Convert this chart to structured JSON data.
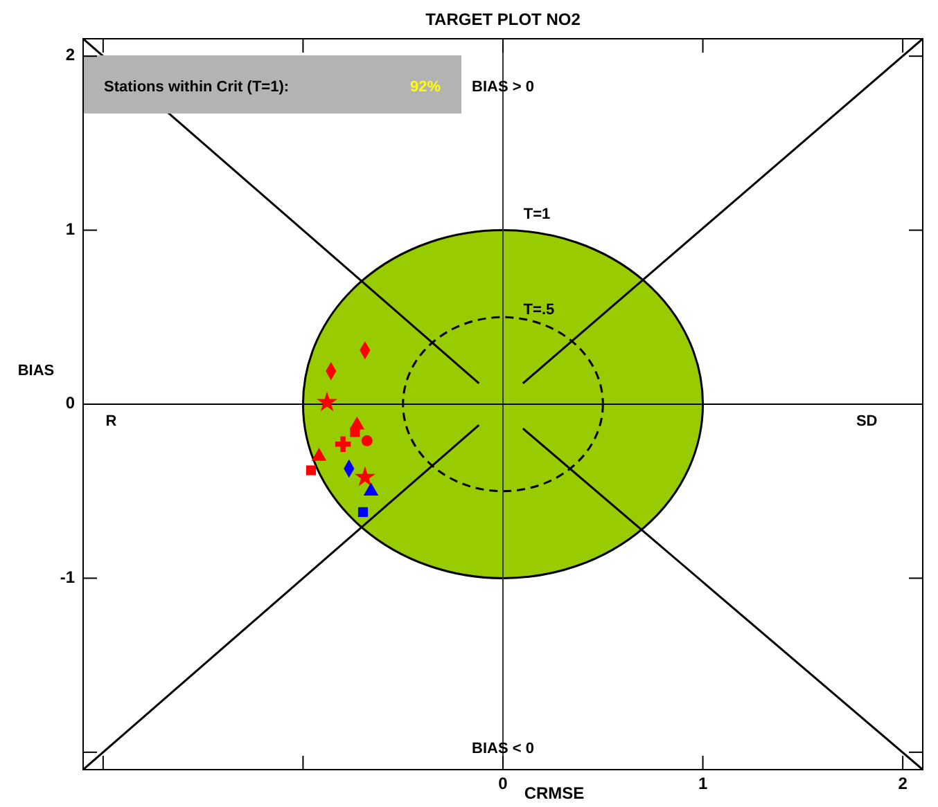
{
  "chart_data": {
    "type": "scatter",
    "title": "TARGET PLOT   NO2",
    "xlabel": "CRMSE",
    "ylabel": "BIAS",
    "xlim": [
      -2.1,
      2.1
    ],
    "ylim": [
      -2.1,
      2.1
    ],
    "xticks": [
      {
        "value": -2,
        "label": null
      },
      {
        "value": -1,
        "label": null
      },
      0,
      1,
      2
    ],
    "yticks": [
      {
        "value": -2,
        "label": null
      },
      -1,
      0,
      1,
      2
    ],
    "ref_lines": [
      {
        "axis": "x",
        "value": 0,
        "color": "#333333"
      },
      {
        "axis": "y",
        "value": 0,
        "color": "#000000"
      }
    ],
    "annotations": [
      "Stations within Crit (T=1):",
      "92%",
      {
        "text": "BIAS > 0",
        "x": 0,
        "y": 1.82
      },
      {
        "text": "BIAS < 0",
        "x": 0,
        "y": -1.98
      },
      "R",
      "SD",
      "T=1",
      "T=.5"
    ],
    "series": [
      {
        "type": "line",
        "color": "#000000",
        "x": [
          -2.1,
          -0.12
        ],
        "values": [
          2.1,
          0.12
        ]
      },
      {
        "type": "line",
        "color": "#000000",
        "x": [
          0.1,
          2.1
        ],
        "values": [
          0.12,
          2.1
        ]
      },
      {
        "type": "line",
        "color": "#000000",
        "x": [
          -2.1,
          -0.12
        ],
        "values": [
          -2.1,
          -0.12
        ]
      },
      {
        "type": "line",
        "color": "#000000",
        "x": [
          0.1,
          2.1
        ],
        "values": [
          -0.14,
          -2.1
        ]
      },
      {
        "color": "#ff0000",
        "marker": "diamond",
        "x": [
          -0.69
        ],
        "values": [
          0.31
        ]
      },
      {
        "color": "#ff0000",
        "marker": "diamond",
        "x": [
          -0.86
        ],
        "values": [
          0.19
        ]
      },
      {
        "color": "#ff0000",
        "marker": "star",
        "x": [
          -0.88
        ],
        "values": [
          0.01
        ]
      },
      {
        "color": "#ff0000",
        "marker": "triangle",
        "x": [
          -0.73
        ],
        "values": [
          -0.12
        ]
      },
      {
        "color": "#ff0000",
        "marker": "square",
        "x": [
          -0.74
        ],
        "values": [
          -0.16
        ]
      },
      {
        "color": "#ff0000",
        "marker": "circle",
        "x": [
          -0.68
        ],
        "values": [
          -0.21
        ]
      },
      {
        "color": "#ff0000",
        "marker": "cross",
        "x": [
          -0.8
        ],
        "values": [
          -0.23
        ]
      },
      {
        "color": "#ff0000",
        "marker": "triangle",
        "x": [
          -0.92
        ],
        "values": [
          -0.3
        ]
      },
      {
        "color": "#ff0000",
        "marker": "square",
        "x": [
          -0.96
        ],
        "values": [
          -0.38
        ]
      },
      {
        "color": "#0000ff",
        "marker": "diamond",
        "x": [
          -0.77
        ],
        "values": [
          -0.37
        ]
      },
      {
        "color": "#ff0000",
        "marker": "star",
        "x": [
          -0.69
        ],
        "values": [
          -0.42
        ]
      },
      {
        "color": "#0000ff",
        "marker": "triangle",
        "x": [
          -0.66
        ],
        "values": [
          -0.5
        ]
      },
      {
        "color": "#0000ff",
        "marker": "square",
        "x": [
          -0.7
        ],
        "values": [
          -0.62
        ]
      }
    ]
  }
}
